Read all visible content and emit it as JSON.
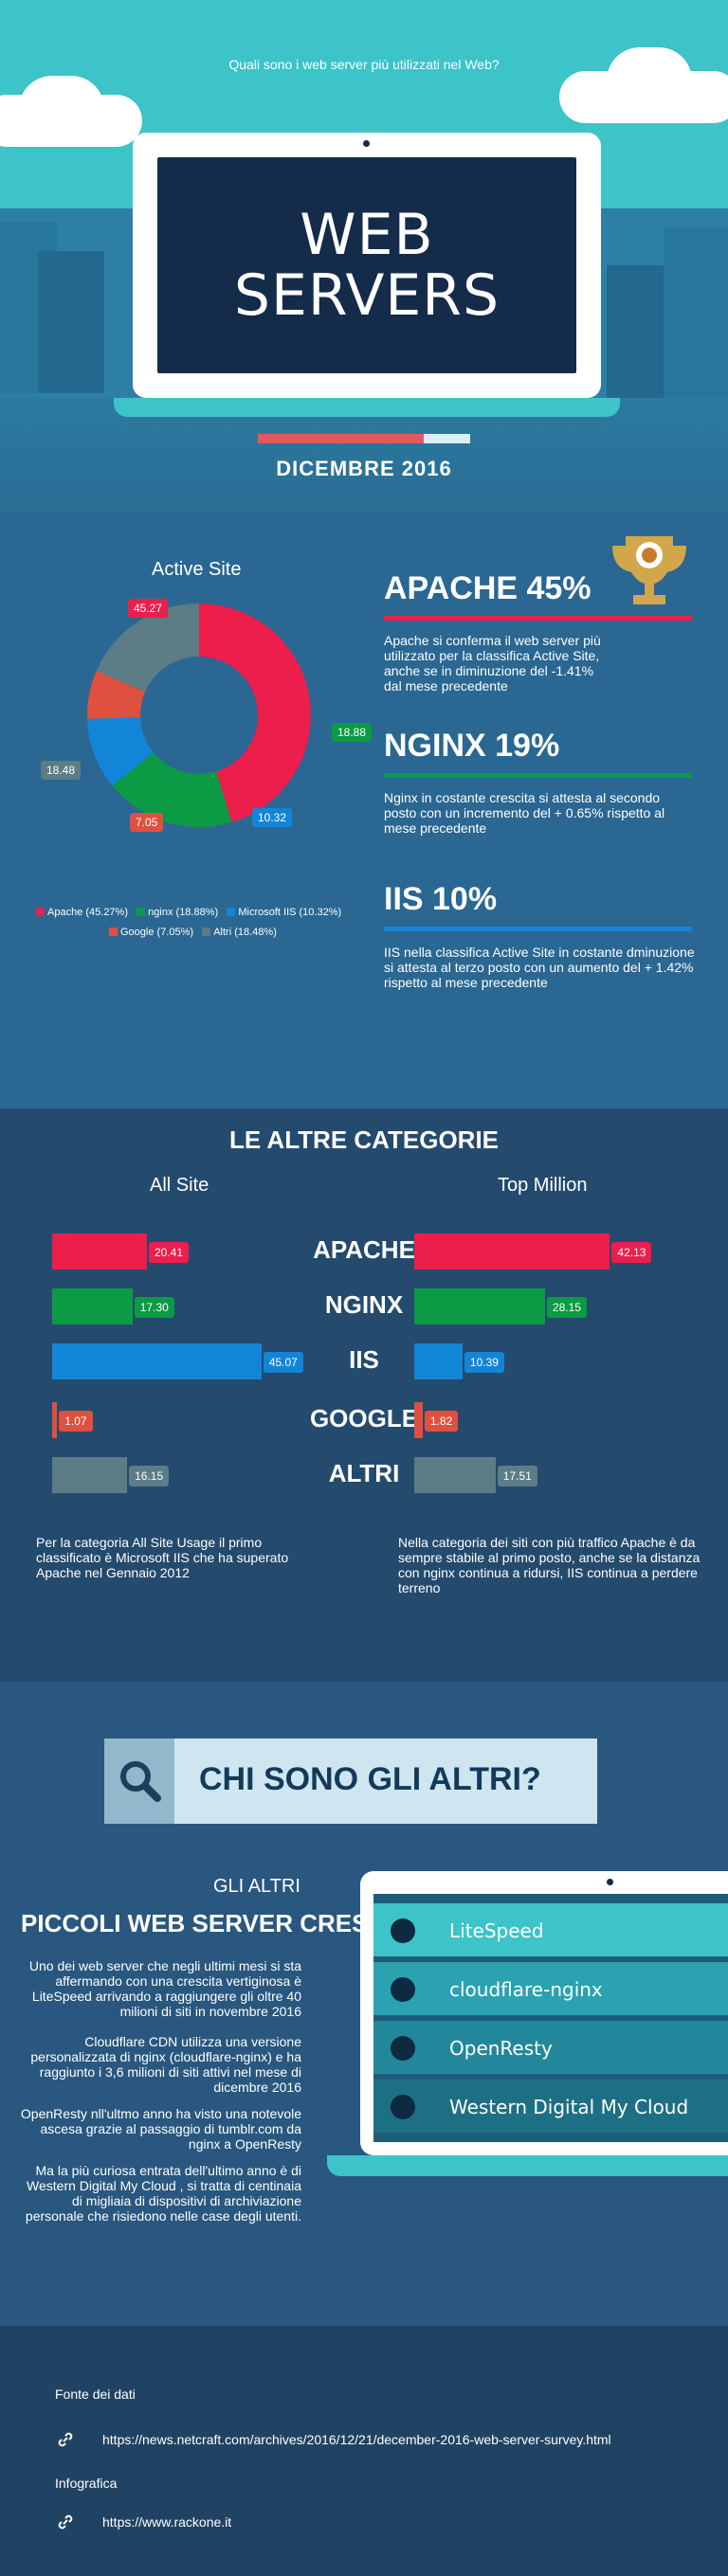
{
  "hero": {
    "question": "Quali sono i web server più utilizzati nel Web?",
    "title_line1": "WEB",
    "title_line2": "SERVERS",
    "progress_fraction": 0.78,
    "date": "DICEMBRE 2016"
  },
  "active_site": {
    "title": "Active Site",
    "slices": [
      {
        "name": "Apache",
        "value": 45.27,
        "color": "#ec1e4b",
        "legend": "Apache (45.27%)"
      },
      {
        "name": "nginx",
        "value": 18.88,
        "color": "#0d9a45",
        "legend": "nginx (18.88%)"
      },
      {
        "name": "Microsoft IIS",
        "value": 10.32,
        "color": "#1385d8",
        "legend": "Microsoft IIS (10.32%)"
      },
      {
        "name": "Google",
        "value": 7.05,
        "color": "#e0503f",
        "legend": "Google (7.05%)"
      },
      {
        "name": "Altri",
        "value": 18.48,
        "color": "#5c7c86",
        "legend": "Altri (18.48%)"
      }
    ],
    "labels": [
      "45.27",
      "18.88",
      "10.32",
      "7.05",
      "18.48"
    ],
    "servers": [
      {
        "heading": "APACHE 45%",
        "color": "#ec1e4b",
        "text": "Apache si conferma il web server più utilizzato per la classifica Active Site, anche se in diminuzione del -1.41% dal mese precedente"
      },
      {
        "heading": "NGINX 19%",
        "color": "#0d9a45",
        "text": "Nginx in costante crescita si attesta al secondo posto con un incremento del + 0.65% rispetto al mese precedente"
      },
      {
        "heading": "IIS 10%",
        "color": "#1385d8",
        "text": "IIS nella classifica Active Site in costante dminuzione si attesta al terzo posto con un aumento del + 1.42% rispetto al mese precedente"
      }
    ]
  },
  "altre": {
    "title": "LE ALTRE CATEGORIE",
    "left_title": "All Site",
    "right_title": "Top Million",
    "categories": [
      "APACHE",
      "NGINX",
      "IIS",
      "GOOGLE",
      "ALTRI"
    ],
    "colors": [
      "#ec1e4b",
      "#0d9a45",
      "#1385d8",
      "#e0503f",
      "#5c7c86"
    ],
    "all_site": [
      20.41,
      17.3,
      45.07,
      1.07,
      16.15
    ],
    "all_site_labels": [
      "20.41",
      "17.30",
      "45.07",
      "1.07",
      "16.15"
    ],
    "top_million": [
      42.13,
      28.15,
      10.39,
      1.82,
      17.51
    ],
    "top_million_labels": [
      "42.13",
      "28.15",
      "10.39",
      "1.82",
      "17.51"
    ],
    "left_note": "Per la categoria All Site Usage il primo classificato è Microsoft IIS che ha superato Apache nel Gennaio 2012",
    "right_note": "Nella categoria dei siti con più traffico Apache è da sempre stabile al primo posto, anche se la distanza con nginx continua a ridursi, IIS continua a perdere terreno"
  },
  "chi": {
    "search_text": "CHI SONO GLI ALTRI?",
    "gli_altri": "GLI ALTRI",
    "heading": "PICCOLI WEB SERVER CRESCONO",
    "paragraphs": [
      "Uno dei web server che negli ultimi mesi si sta affermando con una crescita vertiginosa è LiteSpeed arrivando a raggiungere gli oltre 40 milioni di siti in novembre 2016",
      "Cloudflare CDN utilizza una versione personalizzata di nginx (cloudflare-nginx) e ha raggiunto i 3,6 milioni di siti attivi nel mese di dicembre 2016",
      "OpenResty nll'ultmo anno ha visto una notevole ascesa grazie al passaggio di tumblr.com da nginx a OpenResty",
      "Ma la più curiosa entrata dell'ultimo anno è di Western Digital My Cloud , si tratta di centinaia di migliaia di dispositivi di archiviazione personale  che risiedono nelle case degli utenti."
    ],
    "list": [
      "LiteSpeed",
      "cloudflare-nginx",
      "OpenResty",
      "Western Digital My Cloud"
    ]
  },
  "footer": {
    "source_title": "Fonte dei dati",
    "source_url": "https://news.netcraft.com/archives/2016/12/21/december-2016-web-server-survey.html",
    "info_title": "Infografica",
    "info_url": "https://www.rackone.it"
  }
}
